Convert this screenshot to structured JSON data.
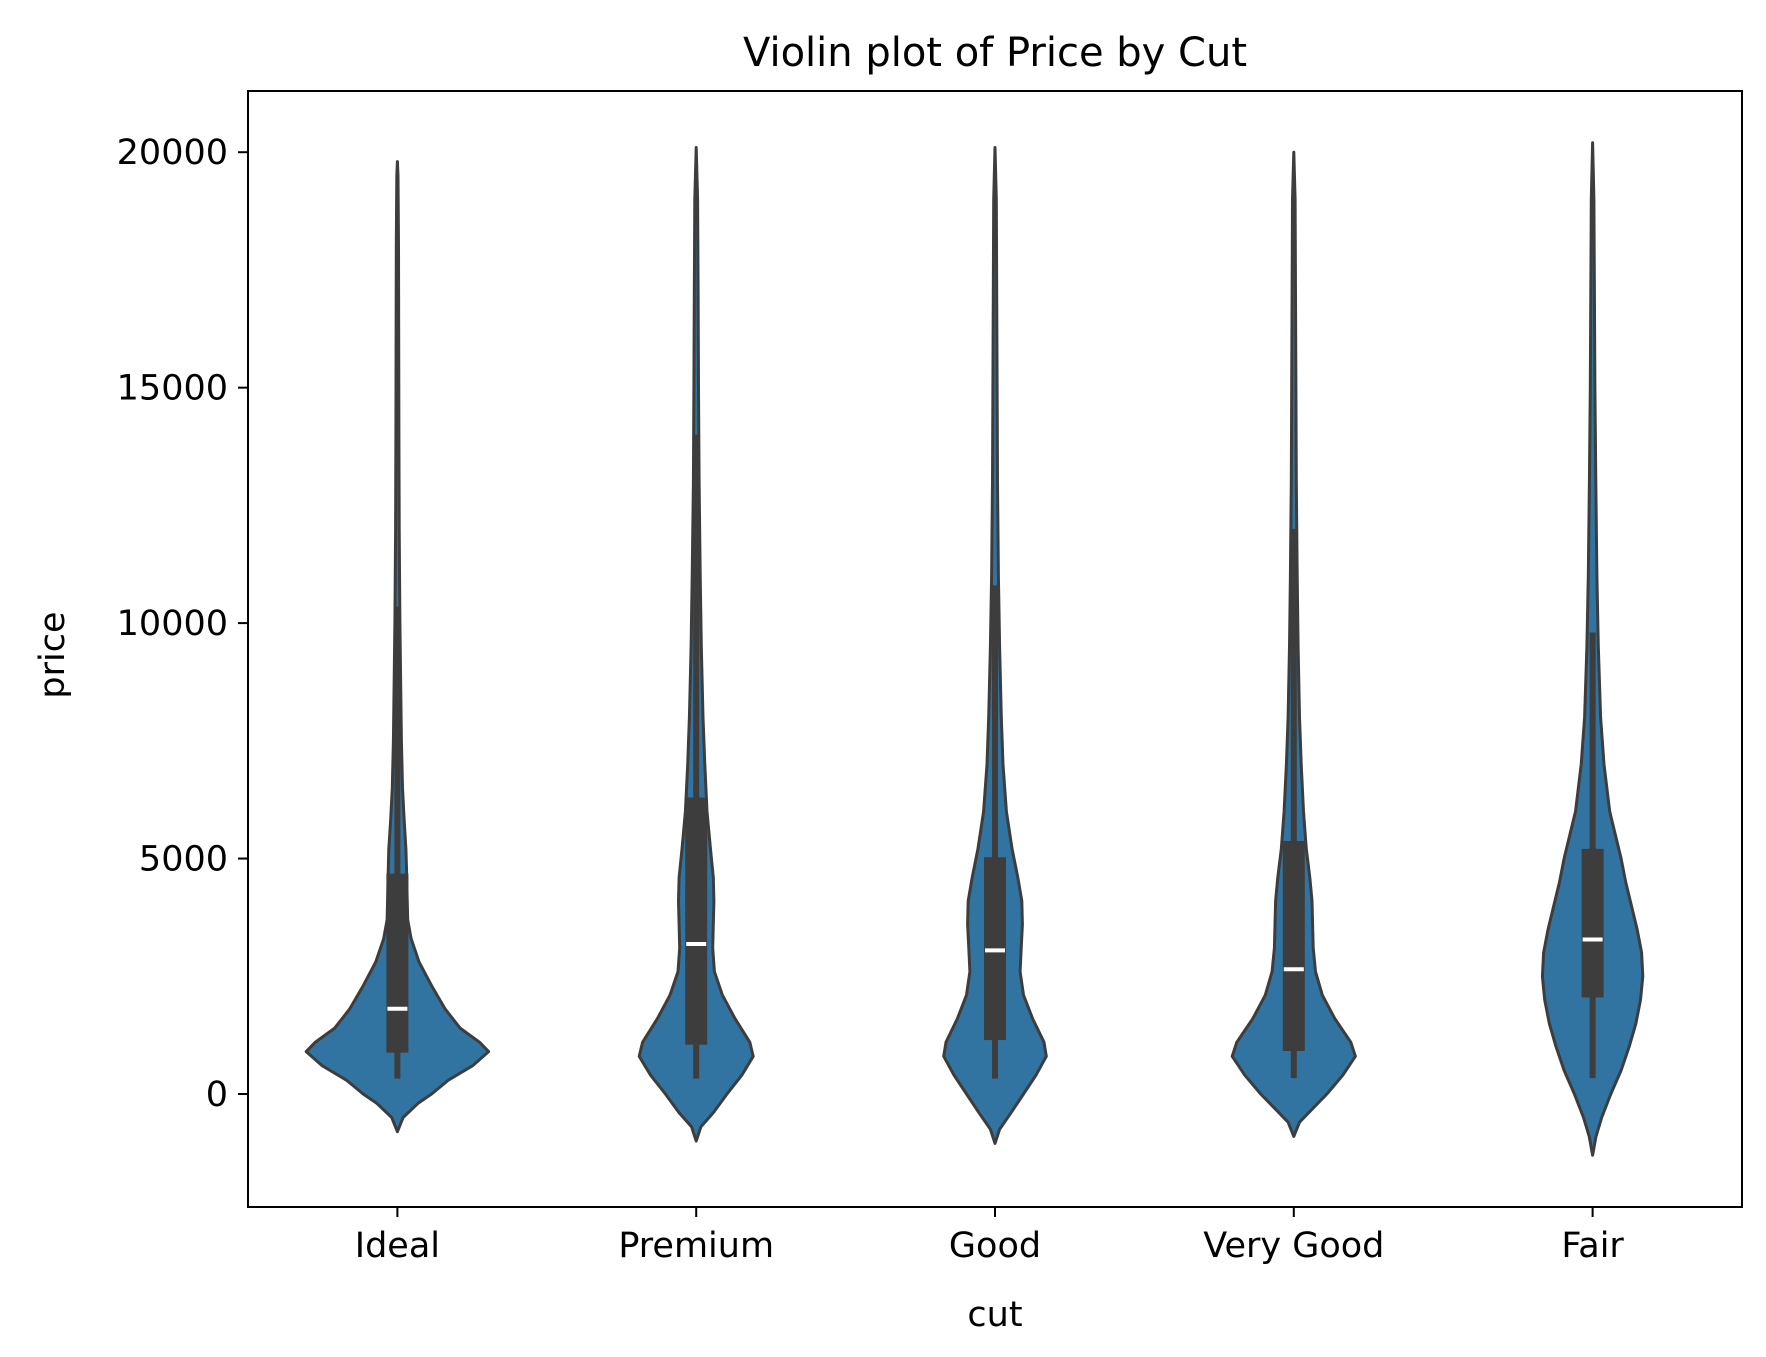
{
  "chart_data": {
    "type": "violin",
    "title": "Violin plot of Price by Cut",
    "xlabel": "cut",
    "ylabel": "price",
    "ylim": [
      -2400,
      21300
    ],
    "yticks": [
      0,
      5000,
      10000,
      15000,
      20000
    ],
    "grid": false,
    "legend": "none",
    "colors": {
      "fill": "#3274a1",
      "line": "#3d3d3d",
      "median": "#ffffff"
    },
    "categories": [
      "Ideal",
      "Premium",
      "Good",
      "Very Good",
      "Fair"
    ],
    "series": [
      {
        "category": "Ideal",
        "min": 326,
        "q1": 878,
        "median": 1810,
        "q3": 4678,
        "max": 18806,
        "whisker_low": 326,
        "whisker_high": 10351,
        "violin_min": -800,
        "violin_max": 19800,
        "density": [
          [
            -800,
            0.0
          ],
          [
            -500,
            0.05
          ],
          [
            -200,
            0.18
          ],
          [
            0,
            0.3
          ],
          [
            300,
            0.45
          ],
          [
            600,
            0.66
          ],
          [
            900,
            0.8
          ],
          [
            1100,
            0.72
          ],
          [
            1400,
            0.55
          ],
          [
            1800,
            0.42
          ],
          [
            2300,
            0.3
          ],
          [
            2800,
            0.19
          ],
          [
            3300,
            0.12
          ],
          [
            3700,
            0.09
          ],
          [
            4200,
            0.085
          ],
          [
            4800,
            0.08
          ],
          [
            5200,
            0.075
          ],
          [
            5800,
            0.06
          ],
          [
            6500,
            0.045
          ],
          [
            7500,
            0.035
          ],
          [
            8500,
            0.03
          ],
          [
            10000,
            0.022
          ],
          [
            12000,
            0.016
          ],
          [
            14000,
            0.013
          ],
          [
            16000,
            0.011
          ],
          [
            18000,
            0.01
          ],
          [
            19500,
            0.005
          ],
          [
            19800,
            0.0
          ]
        ]
      },
      {
        "category": "Premium",
        "min": 326,
        "q1": 1046,
        "median": 3185,
        "q3": 6296,
        "max": 18823,
        "whisker_low": 326,
        "whisker_high": 14000,
        "violin_min": -1000,
        "violin_max": 20100,
        "density": [
          [
            -1000,
            0.0
          ],
          [
            -700,
            0.04
          ],
          [
            -400,
            0.15
          ],
          [
            0,
            0.27
          ],
          [
            400,
            0.4
          ],
          [
            800,
            0.5
          ],
          [
            1100,
            0.47
          ],
          [
            1600,
            0.34
          ],
          [
            2100,
            0.23
          ],
          [
            2600,
            0.16
          ],
          [
            3100,
            0.145
          ],
          [
            3600,
            0.15
          ],
          [
            4100,
            0.155
          ],
          [
            4600,
            0.15
          ],
          [
            5200,
            0.125
          ],
          [
            6000,
            0.095
          ],
          [
            7000,
            0.075
          ],
          [
            8000,
            0.06
          ],
          [
            9500,
            0.045
          ],
          [
            11000,
            0.035
          ],
          [
            13000,
            0.025
          ],
          [
            15000,
            0.02
          ],
          [
            17000,
            0.017
          ],
          [
            19000,
            0.012
          ],
          [
            20100,
            0.0
          ]
        ]
      },
      {
        "category": "Good",
        "min": 327,
        "q1": 1145,
        "median": 3050,
        "q3": 5028,
        "max": 18788,
        "whisker_low": 327,
        "whisker_high": 10800,
        "violin_min": -1050,
        "violin_max": 20100,
        "density": [
          [
            -1050,
            0.0
          ],
          [
            -750,
            0.04
          ],
          [
            -400,
            0.14
          ],
          [
            0,
            0.25
          ],
          [
            400,
            0.36
          ],
          [
            800,
            0.45
          ],
          [
            1100,
            0.43
          ],
          [
            1600,
            0.33
          ],
          [
            2100,
            0.25
          ],
          [
            2600,
            0.22
          ],
          [
            3100,
            0.23
          ],
          [
            3600,
            0.24
          ],
          [
            4100,
            0.235
          ],
          [
            4600,
            0.2
          ],
          [
            5200,
            0.15
          ],
          [
            6000,
            0.1
          ],
          [
            7000,
            0.07
          ],
          [
            8000,
            0.055
          ],
          [
            9500,
            0.04
          ],
          [
            11000,
            0.03
          ],
          [
            13000,
            0.022
          ],
          [
            15000,
            0.018
          ],
          [
            17000,
            0.015
          ],
          [
            19000,
            0.011
          ],
          [
            20100,
            0.0
          ]
        ]
      },
      {
        "category": "Very Good",
        "min": 336,
        "q1": 912,
        "median": 2648,
        "q3": 5373,
        "max": 18818,
        "whisker_low": 336,
        "whisker_high": 12000,
        "violin_min": -900,
        "violin_max": 20000,
        "density": [
          [
            -900,
            0.0
          ],
          [
            -600,
            0.05
          ],
          [
            -300,
            0.17
          ],
          [
            0,
            0.29
          ],
          [
            400,
            0.43
          ],
          [
            800,
            0.54
          ],
          [
            1100,
            0.5
          ],
          [
            1600,
            0.36
          ],
          [
            2100,
            0.25
          ],
          [
            2600,
            0.19
          ],
          [
            3100,
            0.17
          ],
          [
            3600,
            0.165
          ],
          [
            4100,
            0.16
          ],
          [
            4600,
            0.14
          ],
          [
            5200,
            0.11
          ],
          [
            6000,
            0.085
          ],
          [
            7000,
            0.065
          ],
          [
            8000,
            0.05
          ],
          [
            9500,
            0.038
          ],
          [
            11000,
            0.03
          ],
          [
            13000,
            0.022
          ],
          [
            15000,
            0.018
          ],
          [
            17000,
            0.015
          ],
          [
            19000,
            0.011
          ],
          [
            20000,
            0.0
          ]
        ]
      },
      {
        "category": "Fair",
        "min": 337,
        "q1": 2050,
        "median": 3282,
        "q3": 5206,
        "max": 18574,
        "whisker_low": 337,
        "whisker_high": 9800,
        "violin_min": -1300,
        "violin_max": 20200,
        "density": [
          [
            -1300,
            0.0
          ],
          [
            -900,
            0.03
          ],
          [
            -500,
            0.08
          ],
          [
            0,
            0.16
          ],
          [
            500,
            0.25
          ],
          [
            1000,
            0.32
          ],
          [
            1500,
            0.38
          ],
          [
            2000,
            0.42
          ],
          [
            2500,
            0.44
          ],
          [
            3000,
            0.43
          ],
          [
            3500,
            0.39
          ],
          [
            4000,
            0.34
          ],
          [
            4500,
            0.29
          ],
          [
            5000,
            0.25
          ],
          [
            5500,
            0.2
          ],
          [
            6000,
            0.15
          ],
          [
            7000,
            0.1
          ],
          [
            8000,
            0.07
          ],
          [
            9500,
            0.05
          ],
          [
            11000,
            0.038
          ],
          [
            13000,
            0.028
          ],
          [
            15000,
            0.02
          ],
          [
            17000,
            0.016
          ],
          [
            19000,
            0.011
          ],
          [
            20200,
            0.0
          ]
        ]
      }
    ]
  }
}
